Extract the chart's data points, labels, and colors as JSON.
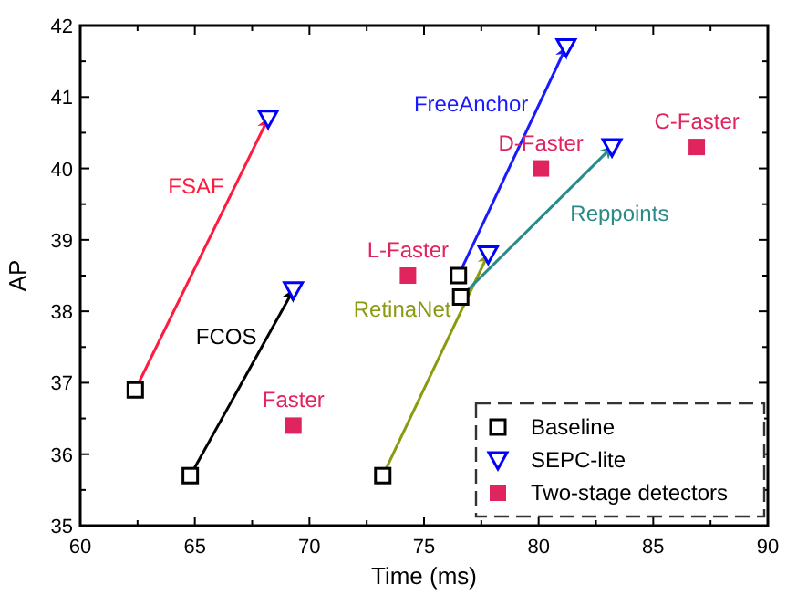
{
  "chart_data": {
    "type": "scatter",
    "xlabel": "Time (ms)",
    "ylabel": "AP",
    "xlim": [
      60,
      90
    ],
    "xticks": [
      60,
      65,
      70,
      75,
      80,
      85,
      90
    ],
    "ylim": [
      35,
      42
    ],
    "yticks": [
      35,
      36,
      37,
      38,
      39,
      40,
      41,
      42
    ],
    "grid": false,
    "legend": "bottom right",
    "series": [
      {
        "type": "line",
        "name": "FSAF",
        "color": "#ff1a40",
        "x": [
          62.4,
          68.2
        ],
        "values": [
          36.9,
          40.7
        ],
        "marker": "none"
      },
      {
        "type": "line",
        "name": "FCOS",
        "color": "#000000",
        "x": [
          64.8,
          69.3
        ],
        "values": [
          35.7,
          38.3
        ],
        "marker": "none"
      },
      {
        "type": "line",
        "name": "RetinaNet",
        "color": "#8c9a10",
        "x": [
          73.2,
          77.8
        ],
        "values": [
          35.7,
          38.8
        ],
        "marker": "none"
      },
      {
        "type": "line",
        "name": "FreeAnchor",
        "color": "#1a1aff",
        "x": [
          76.5,
          81.2
        ],
        "values": [
          38.5,
          41.7
        ],
        "marker": "none"
      },
      {
        "type": "line",
        "name": "Reppoints",
        "color": "#2a8a8a",
        "x": [
          76.6,
          83.2
        ],
        "values": [
          38.2,
          40.3
        ],
        "marker": "none"
      },
      {
        "name": "Baseline",
        "color": "#000000",
        "marker": "square",
        "x": [
          62.4,
          64.8,
          73.2,
          76.5,
          76.6
        ],
        "values": [
          36.9,
          35.7,
          35.7,
          38.5,
          38.2
        ]
      },
      {
        "name": "SEPC-lite",
        "color": "#0000ff",
        "marker": "triangle",
        "x": [
          68.2,
          69.3,
          77.8,
          81.2,
          83.2
        ],
        "values": [
          40.7,
          38.3,
          38.8,
          41.7,
          40.3
        ]
      },
      {
        "name": "Two-stage detectors",
        "color": "#e0245e",
        "marker": "square",
        "x": [
          69.3,
          74.3,
          80.1,
          86.9
        ],
        "values": [
          36.4,
          38.5,
          40.0,
          40.3
        ]
      }
    ],
    "annotations": [
      {
        "text": "Faster",
        "x": 69.3,
        "y": 36.4
      },
      {
        "text": "L-Faster",
        "x": 74.3,
        "y": 38.5
      },
      {
        "text": "D-Faster",
        "x": 80.1,
        "y": 40.0
      },
      {
        "text": "C-Faster",
        "x": 86.9,
        "y": 40.3
      }
    ]
  }
}
